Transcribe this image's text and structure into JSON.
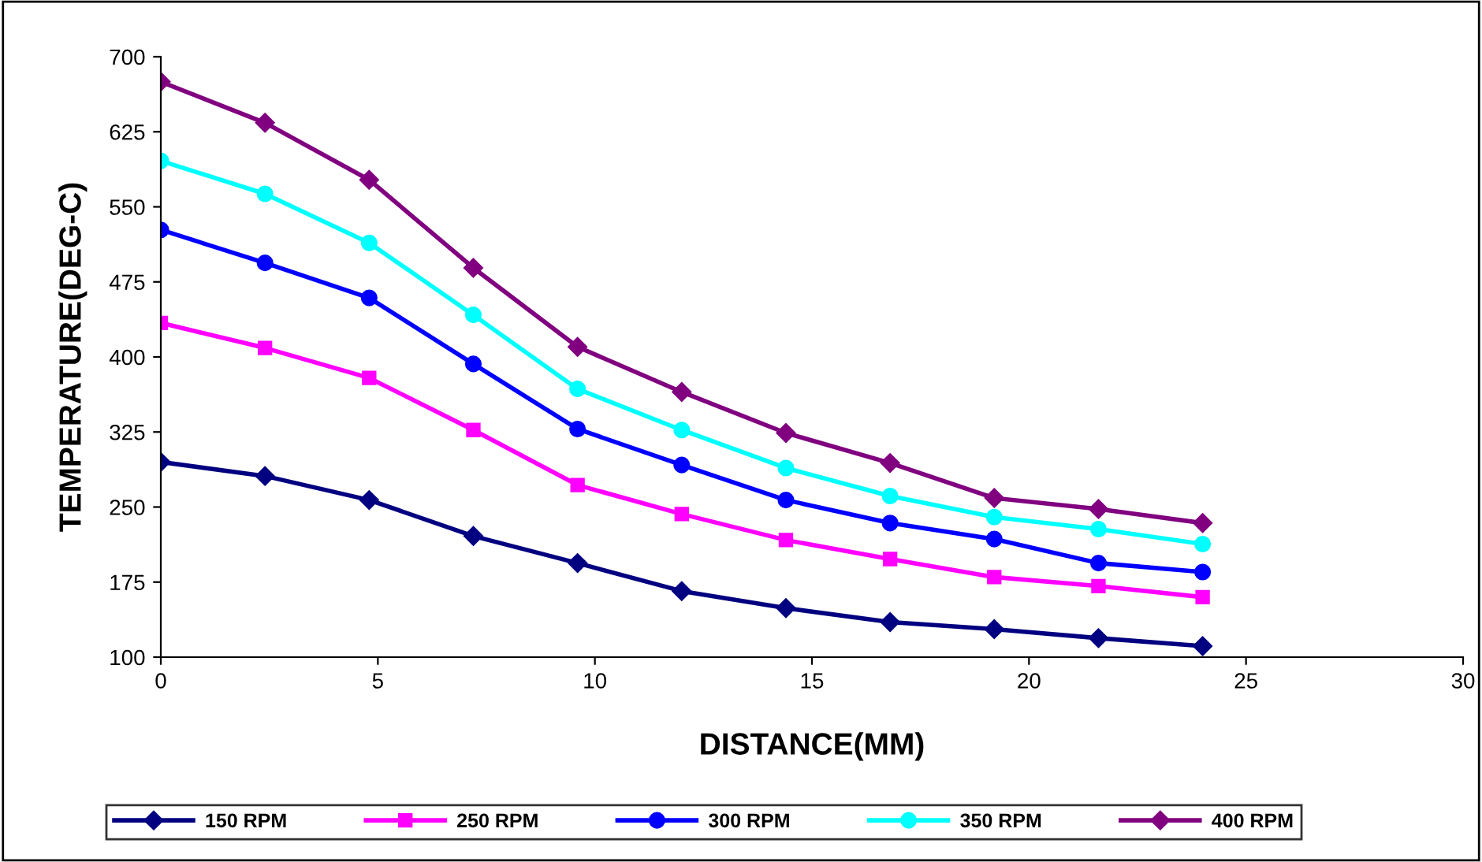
{
  "chart_data": {
    "type": "line",
    "xlabel": "DISTANCE(MM)",
    "ylabel": "TEMPERATURE(DEG-C)",
    "x": [
      0,
      2.4,
      4.8,
      7.2,
      9.6,
      12,
      14.4,
      16.8,
      19.2,
      21.6,
      24
    ],
    "xlim": [
      0,
      30
    ],
    "xticks": [
      0,
      5,
      10,
      15,
      20,
      25,
      30
    ],
    "ylim": [
      100,
      700
    ],
    "yticks": [
      100,
      175,
      250,
      325,
      400,
      475,
      550,
      625,
      700
    ],
    "grid": false,
    "legend": "bottom",
    "series": [
      {
        "name": "150 RPM",
        "color": "#000080",
        "marker": "diamond",
        "values": [
          295,
          281,
          257,
          221,
          194,
          166,
          149,
          135,
          128,
          119,
          111
        ]
      },
      {
        "name": "250 RPM",
        "color": "#ff00ff",
        "marker": "square",
        "values": [
          434,
          409,
          379,
          327,
          272,
          243,
          217,
          198,
          180,
          171,
          160
        ]
      },
      {
        "name": "300 RPM",
        "color": "#0000ff",
        "marker": "circle",
        "values": [
          527,
          494,
          459,
          393,
          328,
          292,
          257,
          234,
          218,
          194,
          185
        ]
      },
      {
        "name": "350 RPM",
        "color": "#00ffff",
        "marker": "circle",
        "values": [
          596,
          563,
          514,
          442,
          368,
          327,
          289,
          261,
          240,
          228,
          213
        ]
      },
      {
        "name": "400 RPM",
        "color": "#800080",
        "marker": "diamond",
        "values": [
          675,
          634,
          577,
          489,
          410,
          365,
          324,
          294,
          259,
          248,
          234
        ]
      }
    ]
  }
}
